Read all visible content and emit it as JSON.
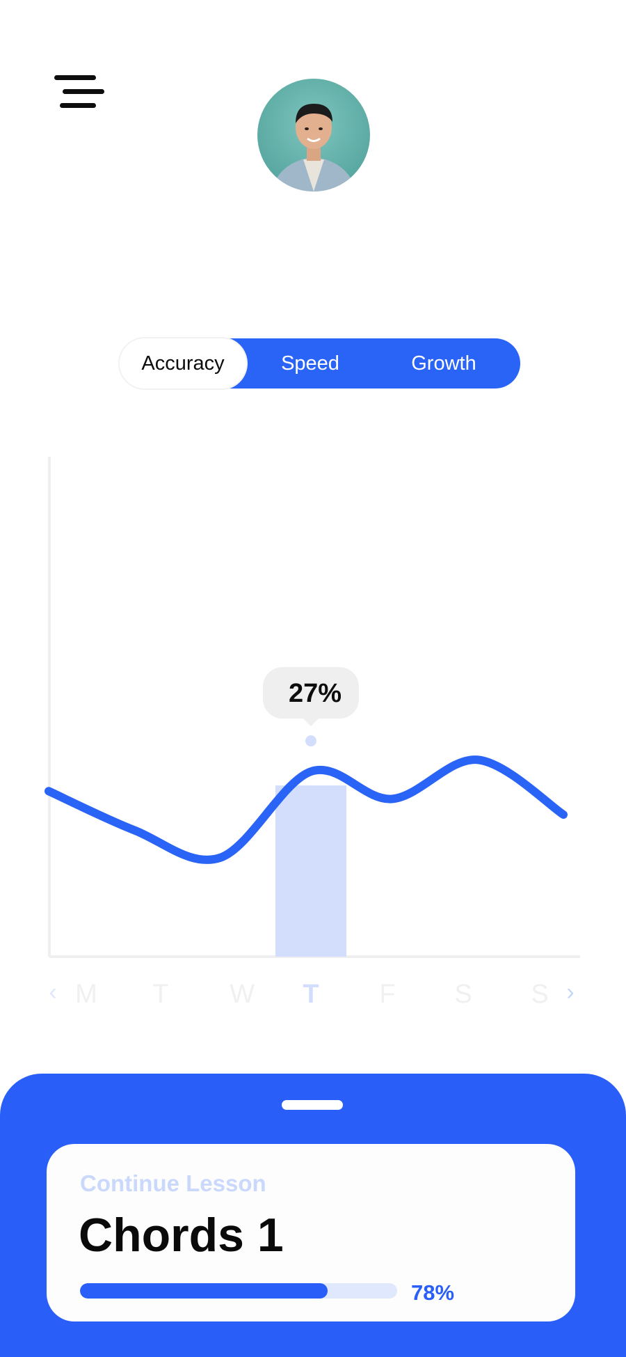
{
  "header": {
    "menu_icon": "hamburger-menu-icon",
    "avatar_icon": "user-avatar"
  },
  "tabs": [
    {
      "label": "Accuracy",
      "active": true
    },
    {
      "label": "Speed",
      "active": false
    },
    {
      "label": "Growth",
      "active": false
    }
  ],
  "chart_data": {
    "type": "line",
    "categories": [
      "M",
      "T",
      "W",
      "T",
      "F",
      "S",
      "S"
    ],
    "values": [
      22,
      12,
      5,
      27,
      20,
      30,
      16
    ],
    "highlight_index": 3,
    "tooltip": "27%",
    "nav_prev": "‹",
    "nav_next": "›",
    "accent_color": "#2a64f6",
    "highlight_color": "#d2defc"
  },
  "lesson": {
    "subtitle": "Continue Lesson",
    "title": "Chords 1",
    "progress": 0.78,
    "progress_label": "78%"
  }
}
